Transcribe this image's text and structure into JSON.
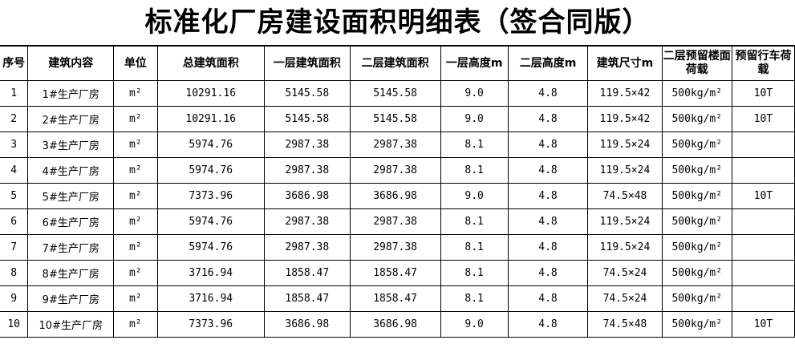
{
  "title": "标准化厂房建设面积明细表（签合同版）",
  "headers": [
    "序号",
    "建筑内容",
    "单位",
    "总建筑面积",
    "一层建筑面积",
    "二层建筑面积",
    "一层高度m",
    "二层高度m",
    "建筑尺寸m",
    "二层预留楼面荷载",
    "预留行车荷载"
  ],
  "rows": [
    {
      "no": "1",
      "name": "1#生产厂房",
      "unit": "m²",
      "total": "10291.16",
      "floor1": "5145.58",
      "floor2": "5145.58",
      "h1": "9.0",
      "h2": "4.8",
      "size": "119.5×42",
      "load": "500kg/m²",
      "crane": "10T"
    },
    {
      "no": "2",
      "name": "2#生产厂房",
      "unit": "m²",
      "total": "10291.16",
      "floor1": "5145.58",
      "floor2": "5145.58",
      "h1": "9.0",
      "h2": "4.8",
      "size": "119.5×42",
      "load": "500kg/m²",
      "crane": "10T"
    },
    {
      "no": "3",
      "name": "3#生产厂房",
      "unit": "m²",
      "total": "5974.76",
      "floor1": "2987.38",
      "floor2": "2987.38",
      "h1": "8.1",
      "h2": "4.8",
      "size": "119.5×24",
      "load": "500kg/m²",
      "crane": ""
    },
    {
      "no": "4",
      "name": "4#生产厂房",
      "unit": "m²",
      "total": "5974.76",
      "floor1": "2987.38",
      "floor2": "2987.38",
      "h1": "8.1",
      "h2": "4.8",
      "size": "119.5×24",
      "load": "500kg/m²",
      "crane": ""
    },
    {
      "no": "5",
      "name": "5#生产厂房",
      "unit": "m²",
      "total": "7373.96",
      "floor1": "3686.98",
      "floor2": "3686.98",
      "h1": "9.0",
      "h2": "4.8",
      "size": "74.5×48",
      "load": "500kg/m²",
      "crane": "10T"
    },
    {
      "no": "6",
      "name": "6#生产厂房",
      "unit": "m²",
      "total": "5974.76",
      "floor1": "2987.38",
      "floor2": "2987.38",
      "h1": "8.1",
      "h2": "4.8",
      "size": "119.5×24",
      "load": "500kg/m²",
      "crane": ""
    },
    {
      "no": "7",
      "name": "7#生产厂房",
      "unit": "m²",
      "total": "5974.76",
      "floor1": "2987.38",
      "floor2": "2987.38",
      "h1": "8.1",
      "h2": "4.8",
      "size": "119.5×24",
      "load": "500kg/m²",
      "crane": ""
    },
    {
      "no": "8",
      "name": "8#生产厂房",
      "unit": "m²",
      "total": "3716.94",
      "floor1": "1858.47",
      "floor2": "1858.47",
      "h1": "8.1",
      "h2": "4.8",
      "size": "74.5×24",
      "load": "500kg/m²",
      "crane": ""
    },
    {
      "no": "9",
      "name": "9#生产厂房",
      "unit": "m²",
      "total": "3716.94",
      "floor1": "1858.47",
      "floor2": "1858.47",
      "h1": "8.1",
      "h2": "4.8",
      "size": "74.5×24",
      "load": "500kg/m²",
      "crane": ""
    },
    {
      "no": "10",
      "name": "10#生产厂房",
      "unit": "m²",
      "total": "7373.96",
      "floor1": "3686.98",
      "floor2": "3686.98",
      "h1": "9.0",
      "h2": "4.8",
      "size": "74.5×48",
      "load": "500kg/m²",
      "crane": "10T"
    }
  ]
}
